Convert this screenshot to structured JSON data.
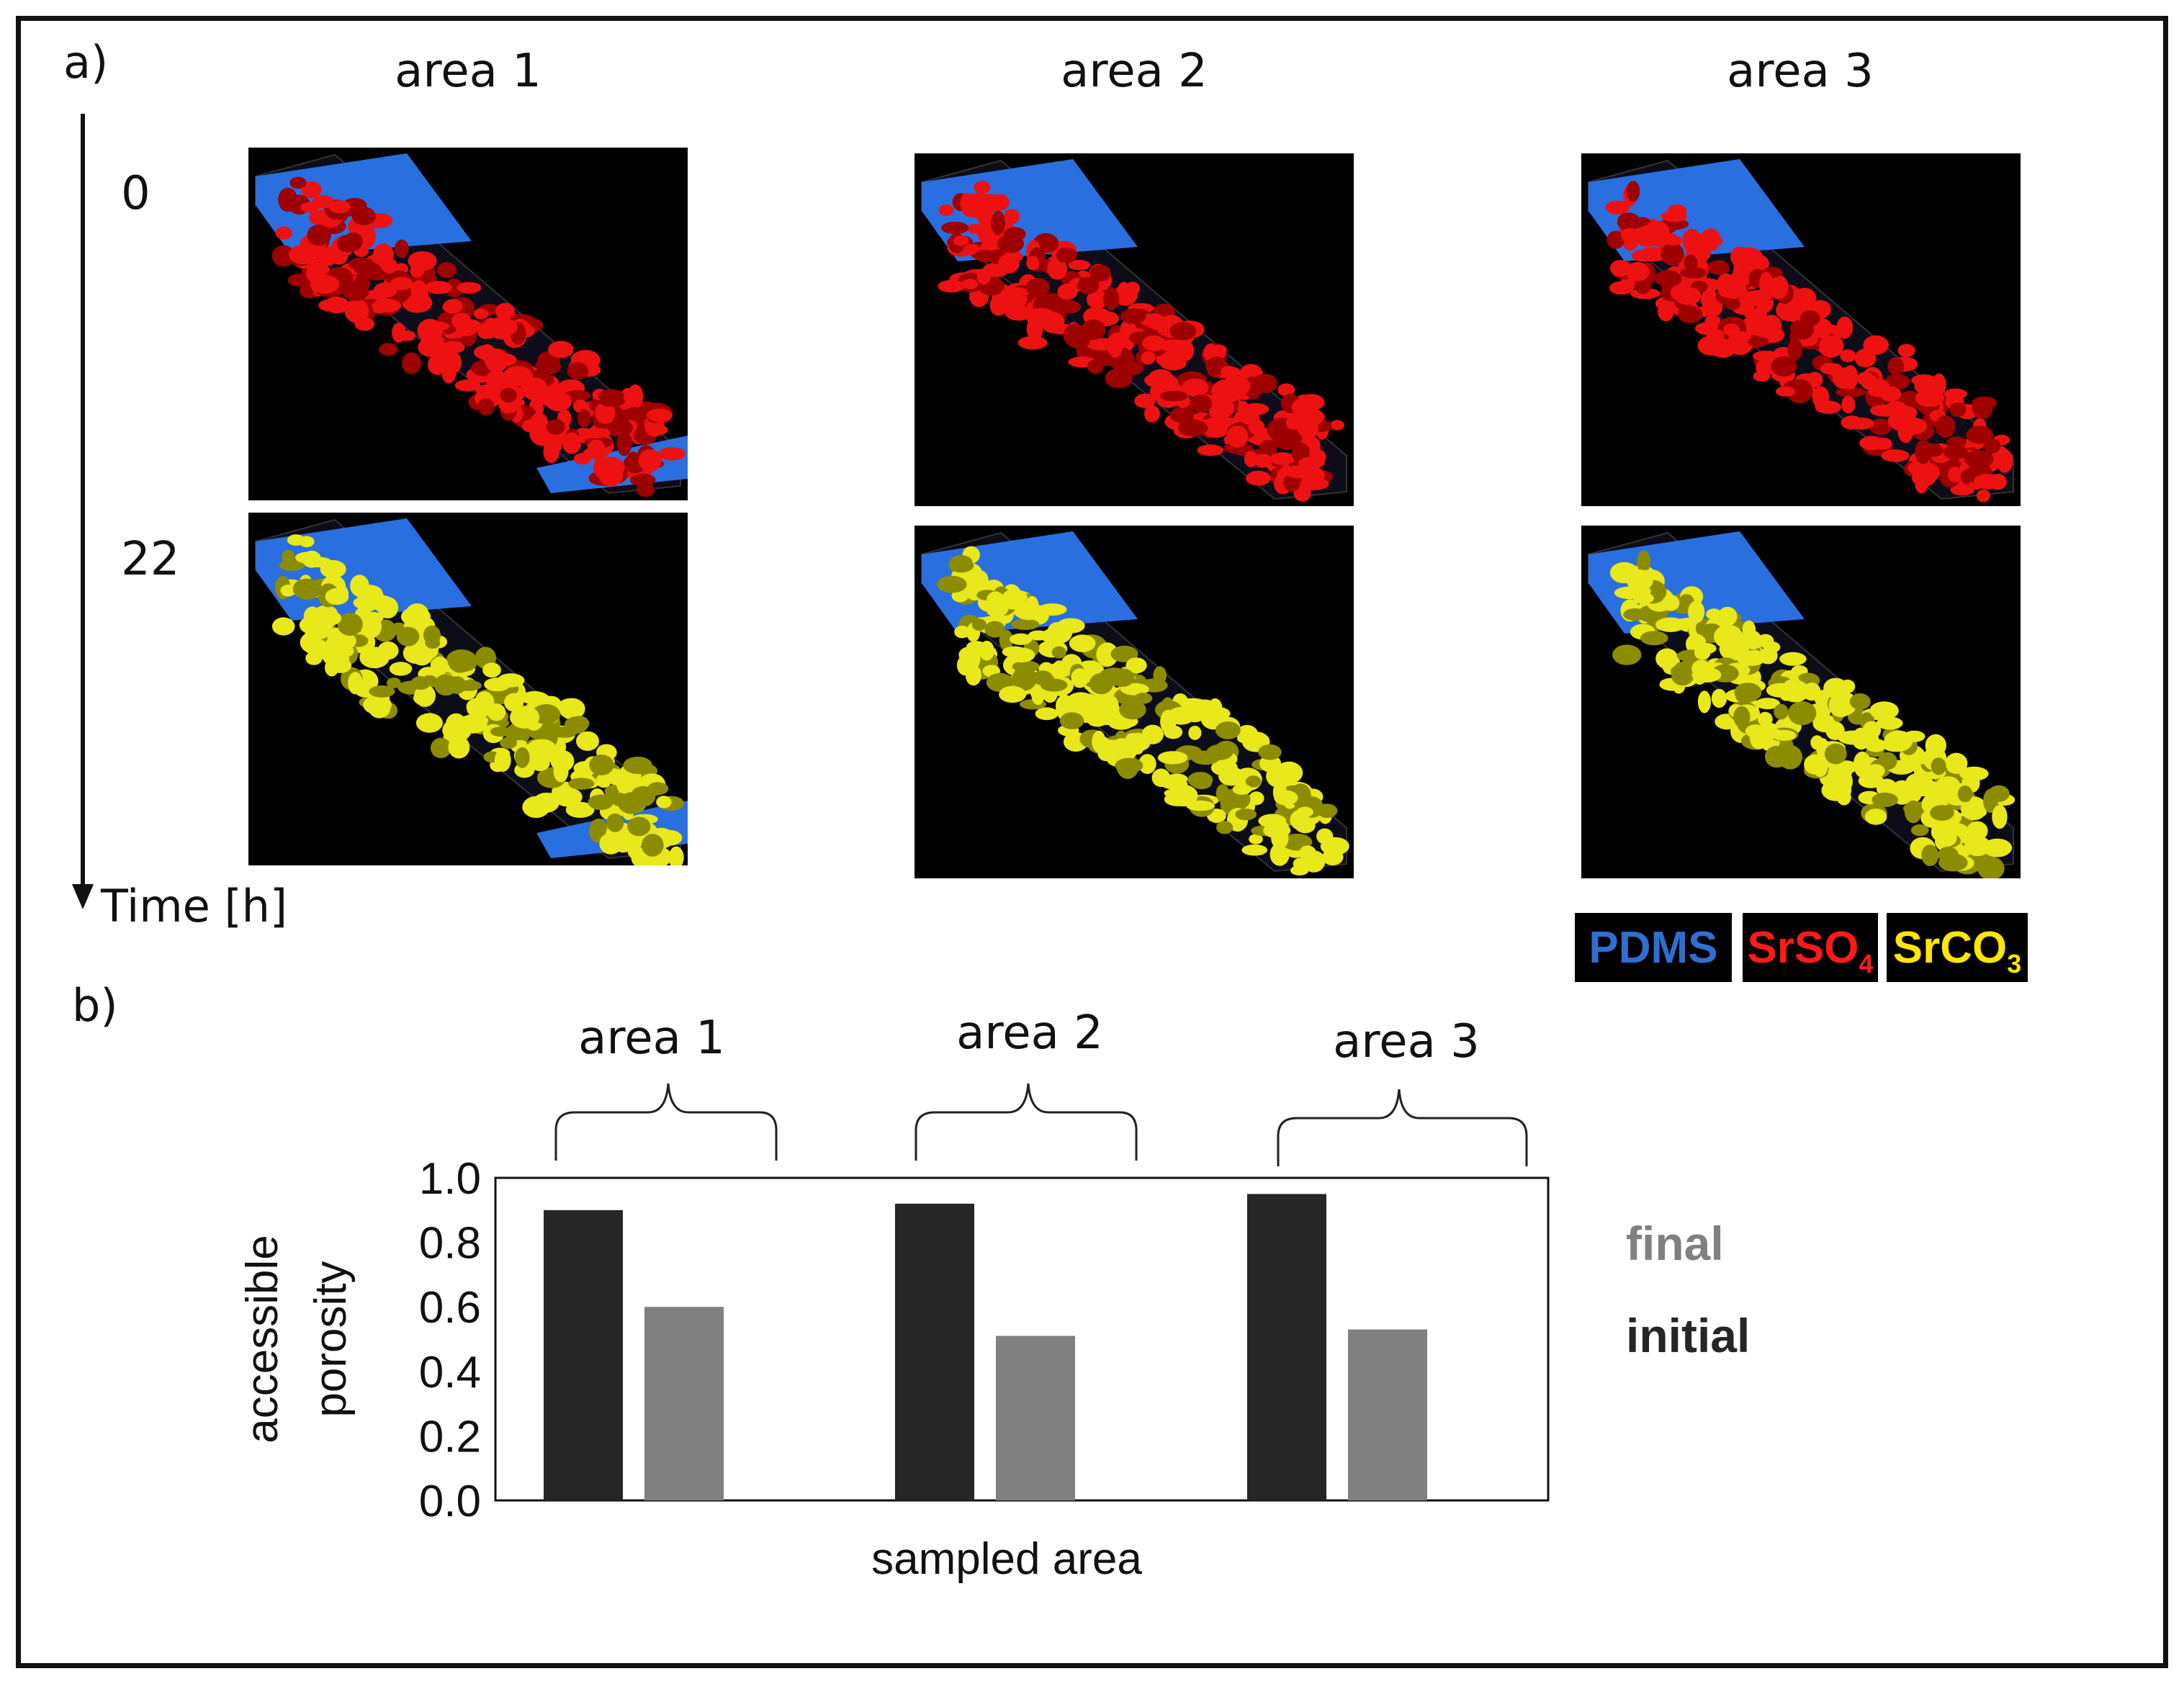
{
  "panel_a": {
    "label": "a)",
    "area_titles": [
      "area 1",
      "area 2",
      "area 3"
    ],
    "time_ticks": [
      "0",
      "22"
    ],
    "time_axis_label": "Time [h]",
    "legend": [
      {
        "text": "PDMS",
        "sub": "",
        "color": "#2e6fd1"
      },
      {
        "text": "SrSO",
        "sub": "4",
        "color": "#ff1a1a"
      },
      {
        "text": "SrCO",
        "sub": "3",
        "color": "#ffe600"
      }
    ],
    "material_colors": {
      "pdms": "#2a6fe0",
      "srso4": "#ee1111",
      "srco3": "#e8e81a"
    }
  },
  "panel_b": {
    "label": "b)",
    "brace_labels": [
      "area 1",
      "area 2",
      "area 3"
    ]
  },
  "chart_data": {
    "type": "bar",
    "xlabel": "sampled area",
    "ylabel": "accessible porosity",
    "ylim": [
      0.0,
      1.0
    ],
    "yticks": [
      "0.0",
      "0.2",
      "0.4",
      "0.6",
      "0.8",
      "1.0"
    ],
    "categories": [
      "area 1",
      "area 2",
      "area 3"
    ],
    "series": [
      {
        "name": "initial",
        "color": "#262626",
        "values": [
          0.9,
          0.92,
          0.95
        ]
      },
      {
        "name": "final",
        "color": "#808080",
        "values": [
          0.6,
          0.51,
          0.53
        ]
      }
    ],
    "legend_order": [
      "final",
      "initial"
    ]
  }
}
